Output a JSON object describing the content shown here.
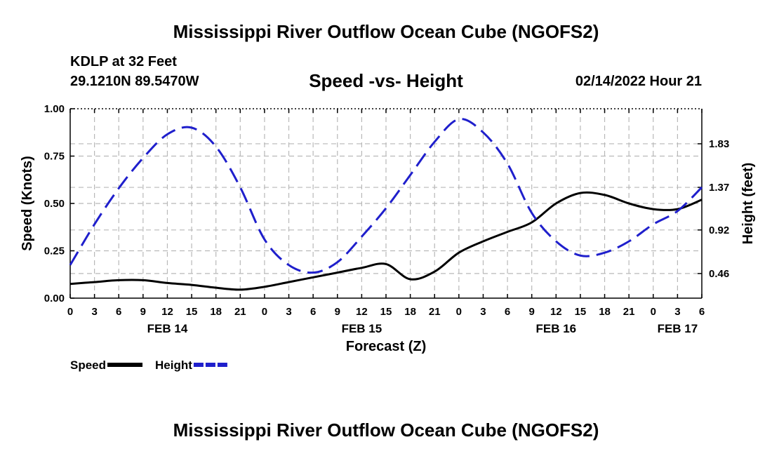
{
  "header": {
    "title": "Mississippi River Outflow Ocean Cube (NGOFS2)",
    "station": "KDLP at 32 Feet",
    "coordinates": "29.1210N  89.5470W",
    "subtitle": "Speed -vs- Height",
    "datetime": "02/14/2022 Hour 21"
  },
  "footer": {
    "title": "Mississippi River Outflow Ocean Cube (NGOFS2)"
  },
  "chart_data": {
    "type": "line",
    "title": "Speed -vs- Height",
    "xlabel": "Forecast (Z)",
    "ylabel": "Speed (Knots)",
    "y2label": "Height (feet)",
    "x_unit": "hours since FEB 14 00Z",
    "xlim": [
      0,
      78
    ],
    "ylim": [
      0,
      1.0
    ],
    "y2lim": [
      0.2,
      2.2
    ],
    "x_ticks": [
      0,
      3,
      6,
      9,
      12,
      15,
      18,
      21,
      24,
      27,
      30,
      33,
      36,
      39,
      42,
      45,
      48,
      51,
      54,
      57,
      60,
      63,
      66,
      69,
      72,
      75,
      78
    ],
    "x_tick_labels": [
      "0",
      "3",
      "6",
      "9",
      "12",
      "15",
      "18",
      "21",
      "0",
      "3",
      "6",
      "9",
      "12",
      "15",
      "18",
      "21",
      "0",
      "3",
      "6",
      "9",
      "12",
      "15",
      "18",
      "21",
      "0",
      "3",
      "6"
    ],
    "date_labels": [
      {
        "x": 12,
        "label": "FEB 14"
      },
      {
        "x": 36,
        "label": "FEB 15"
      },
      {
        "x": 60,
        "label": "FEB 16"
      },
      {
        "x": 75,
        "label": "FEB 17"
      }
    ],
    "y_ticks": [
      0,
      0.25,
      0.5,
      0.75,
      1.0
    ],
    "y_tick_labels": [
      "0.00",
      "0.25",
      "0.50",
      "0.75",
      "1.00"
    ],
    "y2_ticks": [
      0.46,
      0.92,
      1.37,
      1.83
    ],
    "y2_tick_labels": [
      "0.46",
      "0.92",
      "1.37",
      "1.83"
    ],
    "grid": true,
    "legend": "bottom-left",
    "series": [
      {
        "name": "Speed",
        "axis": "left",
        "color": "#000000",
        "style": "solid",
        "x": [
          0,
          3,
          6,
          9,
          12,
          15,
          18,
          21,
          24,
          27,
          30,
          33,
          36,
          39,
          42,
          45,
          48,
          51,
          54,
          57,
          60,
          63,
          66,
          69,
          72,
          75,
          78
        ],
        "values": [
          0.075,
          0.085,
          0.095,
          0.095,
          0.08,
          0.07,
          0.055,
          0.045,
          0.06,
          0.085,
          0.11,
          0.135,
          0.16,
          0.18,
          0.1,
          0.14,
          0.24,
          0.3,
          0.35,
          0.4,
          0.5,
          0.555,
          0.545,
          0.5,
          0.47,
          0.47,
          0.52
        ]
      },
      {
        "name": "Height",
        "axis": "right",
        "color": "#1f1fcc",
        "style": "dashed",
        "x": [
          0,
          3,
          6,
          9,
          12,
          15,
          18,
          21,
          24,
          27,
          30,
          33,
          36,
          39,
          42,
          45,
          48,
          51,
          54,
          57,
          60,
          63,
          66,
          69,
          72,
          75,
          78
        ],
        "values": [
          0.55,
          0.98,
          1.36,
          1.68,
          1.93,
          2.0,
          1.8,
          1.37,
          0.82,
          0.55,
          0.47,
          0.58,
          0.85,
          1.15,
          1.5,
          1.85,
          2.09,
          1.95,
          1.62,
          1.1,
          0.8,
          0.65,
          0.68,
          0.8,
          0.98,
          1.12,
          1.37
        ]
      }
    ]
  }
}
